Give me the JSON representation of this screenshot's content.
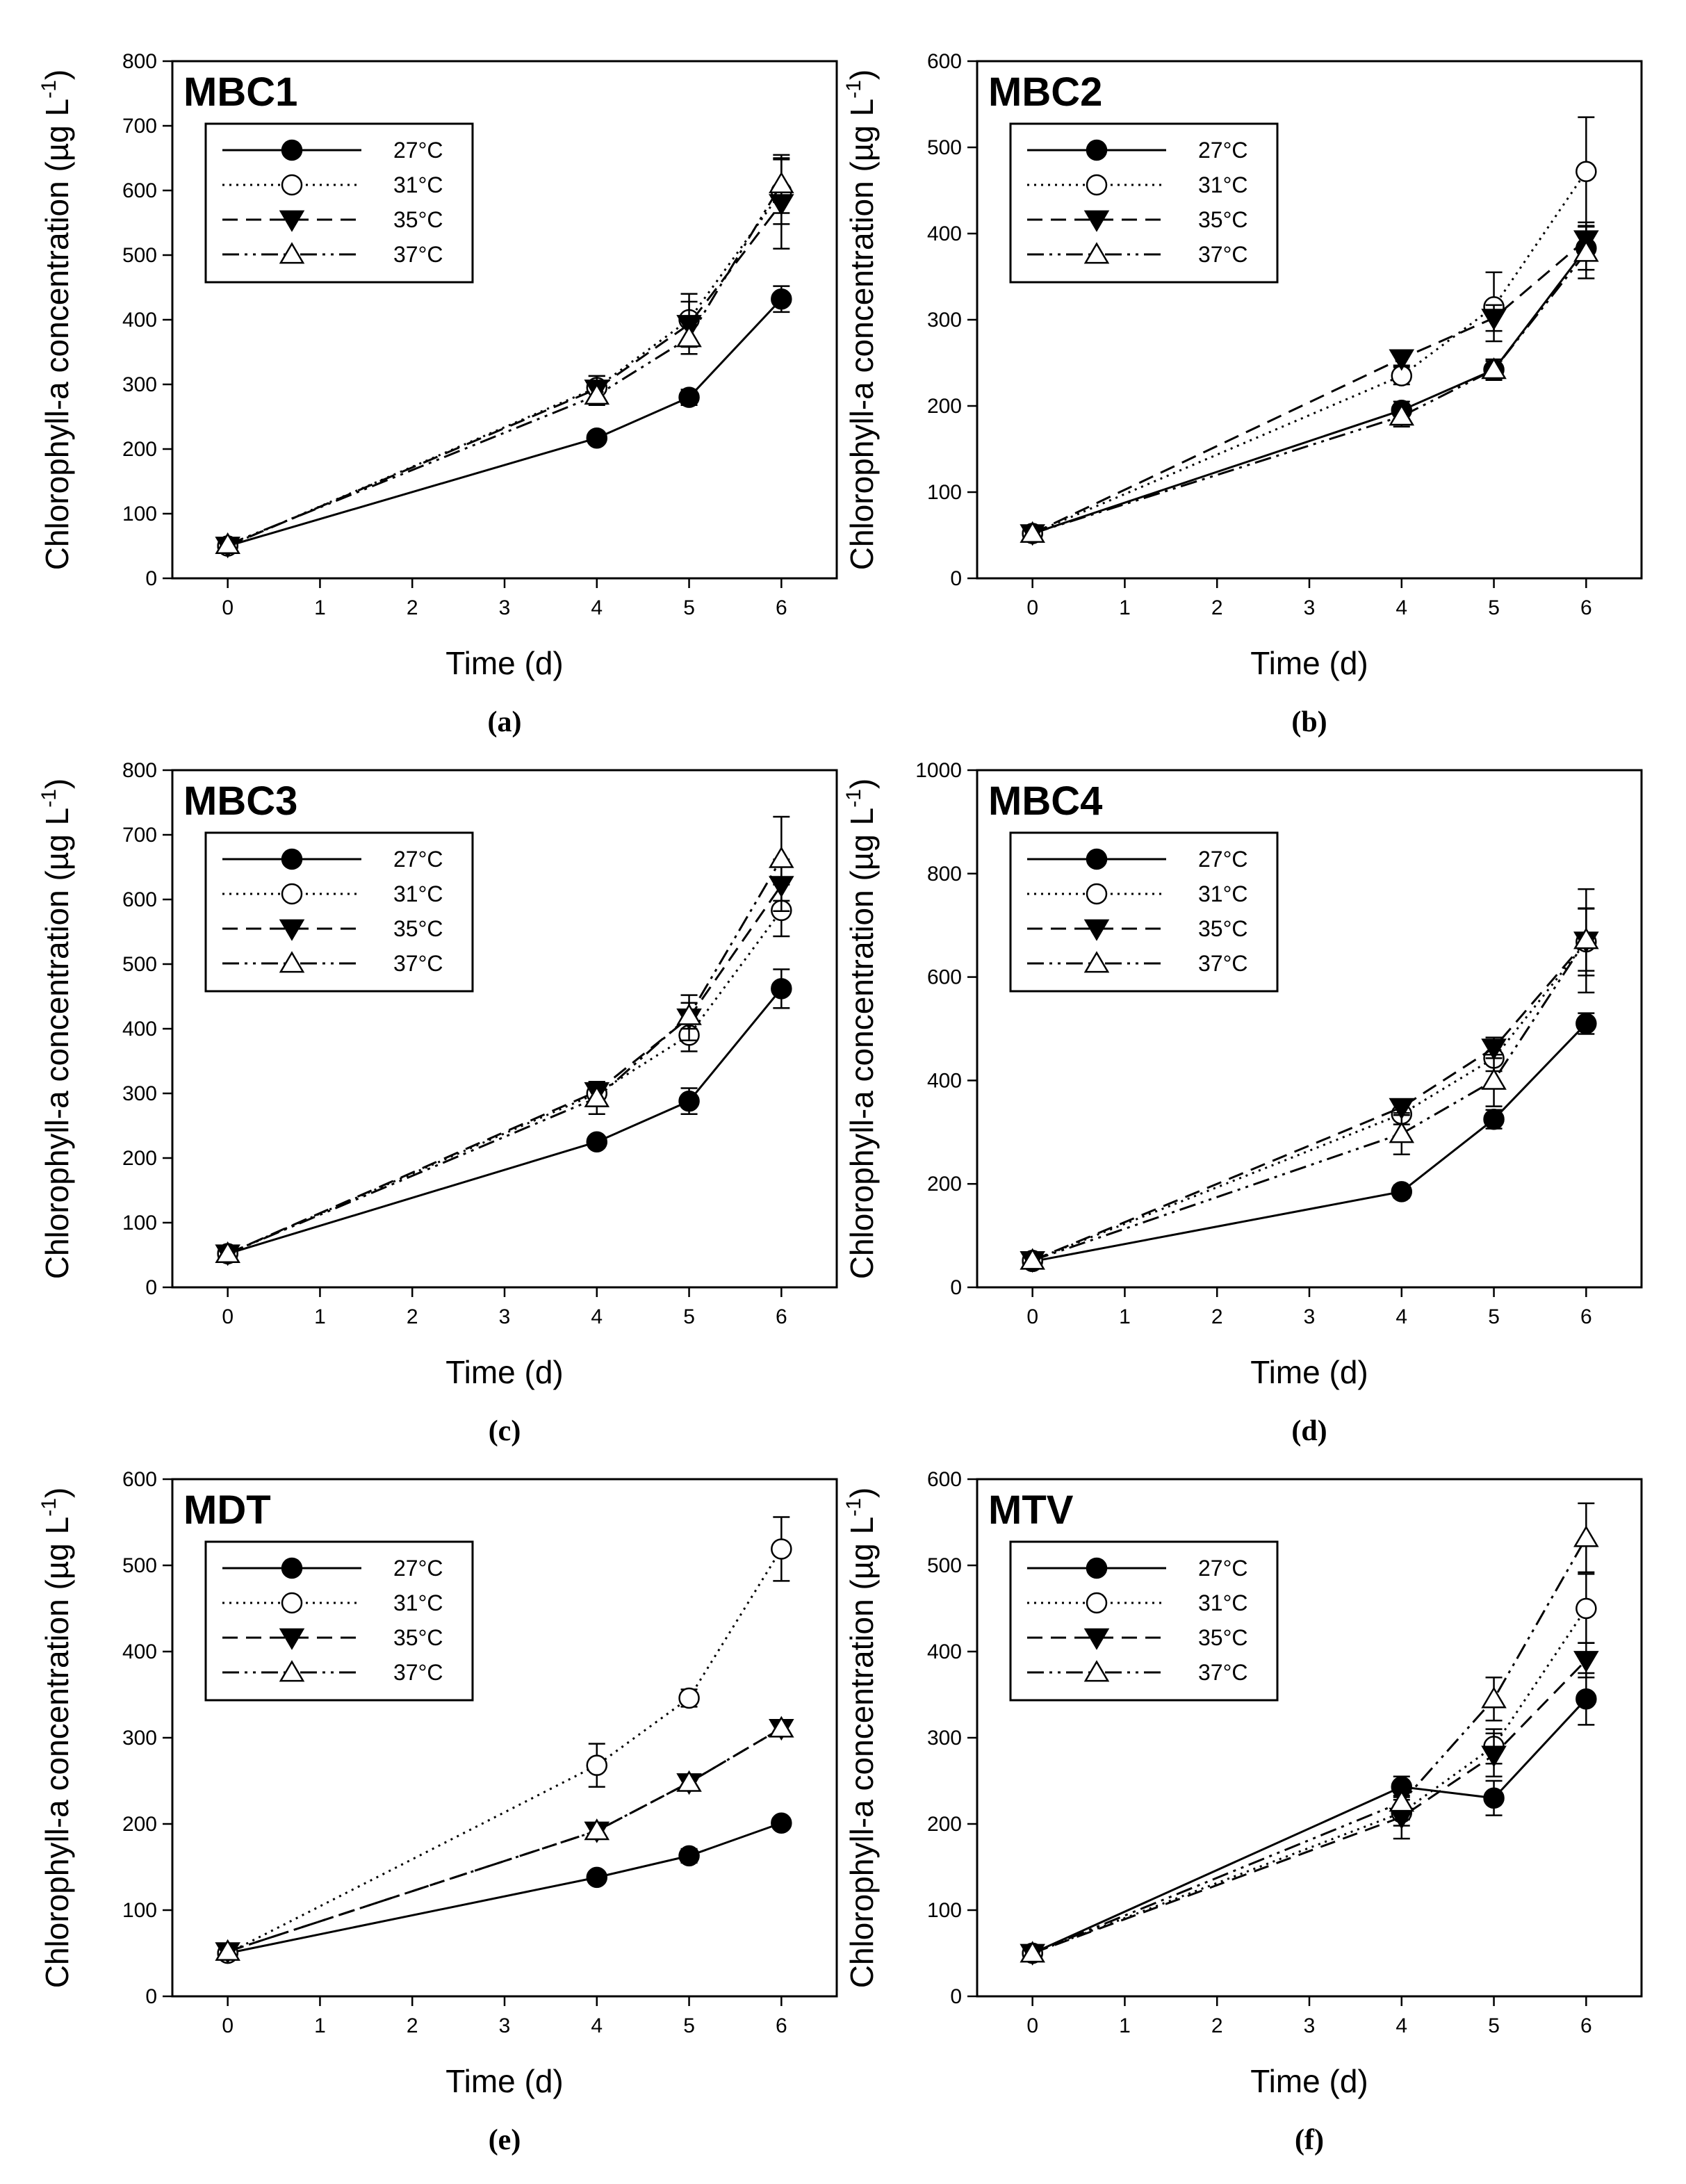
{
  "chart_data": [
    {
      "type": "line",
      "panel": "a",
      "caption": "(a)",
      "title": "MBC1",
      "xlabel": "Time (d)",
      "ylabel_main": "Chlorophyll-a concentration (µg L",
      "ylabel_sup": "-1",
      "ylabel_close": ")",
      "xlim": [
        -0.6,
        6.6
      ],
      "ylim": [
        0,
        800
      ],
      "xticks": [
        0,
        1,
        2,
        3,
        4,
        5,
        6
      ],
      "yticks": [
        0,
        100,
        200,
        300,
        400,
        500,
        600,
        700,
        800
      ],
      "legend_position": "upper-left",
      "x": [
        0,
        4,
        5,
        6
      ],
      "series": [
        {
          "name": "27°C",
          "marker": "filled-circle",
          "line": "solid",
          "values": [
            50,
            217,
            280,
            432
          ],
          "errors": [
            5,
            8,
            12,
            20
          ]
        },
        {
          "name": "31°C",
          "marker": "open-circle",
          "line": "dotted",
          "values": [
            50,
            295,
            400,
            598
          ],
          "errors": [
            5,
            18,
            40,
            50
          ]
        },
        {
          "name": "35°C",
          "marker": "filled-triangle-down",
          "line": "dashed",
          "values": [
            50,
            293,
            393,
            580
          ],
          "errors": [
            5,
            20,
            35,
            70
          ]
        },
        {
          "name": "37°C",
          "marker": "open-triangle-up",
          "line": "dash-dot-dot",
          "values": [
            52,
            283,
            372,
            610
          ],
          "errors": [
            5,
            15,
            25,
            45
          ]
        }
      ]
    },
    {
      "type": "line",
      "panel": "b",
      "caption": "(b)",
      "title": "MBC2",
      "xlabel": "Time (d)",
      "ylabel_main": "Chlorophyll-a concentration (µg L",
      "ylabel_sup": "-1",
      "ylabel_close": ")",
      "xlim": [
        -0.6,
        6.6
      ],
      "ylim": [
        0,
        600
      ],
      "xticks": [
        0,
        1,
        2,
        3,
        4,
        5,
        6
      ],
      "yticks": [
        0,
        100,
        200,
        300,
        400,
        500,
        600
      ],
      "legend_position": "upper-left",
      "x": [
        0,
        4,
        5,
        6
      ],
      "series": [
        {
          "name": "27°C",
          "marker": "filled-circle",
          "line": "solid",
          "values": [
            52,
            195,
            242,
            383
          ],
          "errors": [
            4,
            10,
            10,
            25
          ]
        },
        {
          "name": "31°C",
          "marker": "open-circle",
          "line": "dotted",
          "values": [
            52,
            235,
            315,
            472
          ],
          "errors": [
            4,
            10,
            40,
            63
          ]
        },
        {
          "name": "35°C",
          "marker": "filled-triangle-down",
          "line": "dashed",
          "values": [
            52,
            255,
            302,
            393
          ],
          "errors": [
            4,
            8,
            15,
            20
          ]
        },
        {
          "name": "37°C",
          "marker": "open-triangle-up",
          "line": "dash-dot-dot",
          "values": [
            52,
            188,
            242,
            378
          ],
          "errors": [
            4,
            12,
            12,
            30
          ]
        }
      ]
    },
    {
      "type": "line",
      "panel": "c",
      "caption": "(c)",
      "title": "MBC3",
      "xlabel": "Time (d)",
      "ylabel_main": "Chlorophyll-a concentration (µg L",
      "ylabel_sup": "-1",
      "ylabel_close": ")",
      "xlim": [
        -0.6,
        6.6
      ],
      "ylim": [
        0,
        800
      ],
      "xticks": [
        0,
        1,
        2,
        3,
        4,
        5,
        6
      ],
      "yticks": [
        0,
        100,
        200,
        300,
        400,
        500,
        600,
        700,
        800
      ],
      "legend_position": "upper-left",
      "x": [
        0,
        4,
        5,
        6
      ],
      "series": [
        {
          "name": "27°C",
          "marker": "filled-circle",
          "line": "solid",
          "values": [
            52,
            225,
            288,
            462
          ],
          "errors": [
            4,
            8,
            20,
            30
          ]
        },
        {
          "name": "31°C",
          "marker": "open-circle",
          "line": "dotted",
          "values": [
            52,
            300,
            390,
            583
          ],
          "errors": [
            4,
            15,
            25,
            40
          ]
        },
        {
          "name": "35°C",
          "marker": "filled-triangle-down",
          "line": "dashed",
          "values": [
            52,
            303,
            417,
            622
          ],
          "errors": [
            4,
            15,
            35,
            40
          ]
        },
        {
          "name": "37°C",
          "marker": "open-triangle-up",
          "line": "dash-dot-dot",
          "values": [
            52,
            293,
            420,
            663
          ],
          "errors": [
            4,
            25,
            20,
            65
          ]
        }
      ]
    },
    {
      "type": "line",
      "panel": "d",
      "caption": "(d)",
      "title": "MBC4",
      "xlabel": "Time (d)",
      "ylabel_main": "Chlorophyll-a concentration (µg L",
      "ylabel_sup": "-1",
      "ylabel_close": ")",
      "xlim": [
        -0.6,
        6.6
      ],
      "ylim": [
        0,
        1000
      ],
      "xticks": [
        0,
        1,
        2,
        3,
        4,
        5,
        6
      ],
      "yticks": [
        0,
        200,
        400,
        600,
        800,
        1000
      ],
      "legend_position": "upper-left",
      "x": [
        0,
        4,
        5,
        6
      ],
      "series": [
        {
          "name": "27°C",
          "marker": "filled-circle",
          "line": "solid",
          "values": [
            50,
            185,
            325,
            510
          ],
          "errors": [
            5,
            12,
            18,
            20
          ]
        },
        {
          "name": "31°C",
          "marker": "open-circle",
          "line": "dotted",
          "values": [
            52,
            335,
            443,
            668
          ],
          "errors": [
            5,
            20,
            25,
            65
          ]
        },
        {
          "name": "35°C",
          "marker": "filled-triangle-down",
          "line": "dashed",
          "values": [
            52,
            348,
            463,
            670
          ],
          "errors": [
            5,
            15,
            20,
            100
          ]
        },
        {
          "name": "37°C",
          "marker": "open-triangle-up",
          "line": "dash-dot-dot",
          "values": [
            52,
            297,
            400,
            672
          ],
          "errors": [
            5,
            40,
            50,
            60
          ]
        }
      ]
    },
    {
      "type": "line",
      "panel": "e",
      "caption": "(e)",
      "title": "MDT",
      "xlabel": "Time (d)",
      "ylabel_main": "Chlorophyll-a concentration (µg L",
      "ylabel_sup": "-1",
      "ylabel_close": ")",
      "xlim": [
        -0.6,
        6.6
      ],
      "ylim": [
        0,
        600
      ],
      "xticks": [
        0,
        1,
        2,
        3,
        4,
        5,
        6
      ],
      "yticks": [
        0,
        100,
        200,
        300,
        400,
        500,
        600
      ],
      "legend_position": "upper-left",
      "x": [
        0,
        4,
        5,
        6
      ],
      "series": [
        {
          "name": "27°C",
          "marker": "filled-circle",
          "line": "solid",
          "values": [
            50,
            138,
            163,
            201
          ],
          "errors": [
            3,
            5,
            8,
            5
          ]
        },
        {
          "name": "31°C",
          "marker": "open-circle",
          "line": "dotted",
          "values": [
            50,
            268,
            346,
            519
          ],
          "errors": [
            3,
            25,
            10,
            37
          ]
        },
        {
          "name": "35°C",
          "marker": "filled-triangle-down",
          "line": "dashed",
          "values": [
            52,
            192,
            248,
            311
          ],
          "errors": [
            3,
            5,
            5,
            8
          ]
        },
        {
          "name": "37°C",
          "marker": "open-triangle-up",
          "line": "dash-dot-dot",
          "values": [
            52,
            192,
            248,
            311
          ],
          "errors": [
            3,
            5,
            5,
            8
          ]
        }
      ]
    },
    {
      "type": "line",
      "panel": "f",
      "caption": "(f)",
      "title": "MTV",
      "xlabel": "Time (d)",
      "ylabel_main": "Chlorophyll-a concentration (µg L",
      "ylabel_sup": "-1",
      "ylabel_close": ")",
      "xlim": [
        -0.6,
        6.6
      ],
      "ylim": [
        0,
        600
      ],
      "xticks": [
        0,
        1,
        2,
        3,
        4,
        5,
        6
      ],
      "yticks": [
        0,
        100,
        200,
        300,
        400,
        500,
        600
      ],
      "legend_position": "upper-left",
      "x": [
        0,
        4,
        5,
        6
      ],
      "series": [
        {
          "name": "27°C",
          "marker": "filled-circle",
          "line": "solid",
          "values": [
            50,
            243,
            230,
            345
          ],
          "errors": [
            4,
            12,
            20,
            30
          ]
        },
        {
          "name": "31°C",
          "marker": "open-circle",
          "line": "dotted",
          "values": [
            50,
            213,
            290,
            450
          ],
          "errors": [
            4,
            15,
            20,
            40
          ]
        },
        {
          "name": "35°C",
          "marker": "filled-triangle-down",
          "line": "dashed",
          "values": [
            50,
            208,
            280,
            390
          ],
          "errors": [
            4,
            25,
            25,
            20
          ]
        },
        {
          "name": "37°C",
          "marker": "open-triangle-up",
          "line": "dash-dot-dot",
          "values": [
            50,
            225,
            345,
            532
          ],
          "errors": [
            4,
            20,
            25,
            40
          ]
        }
      ]
    }
  ]
}
